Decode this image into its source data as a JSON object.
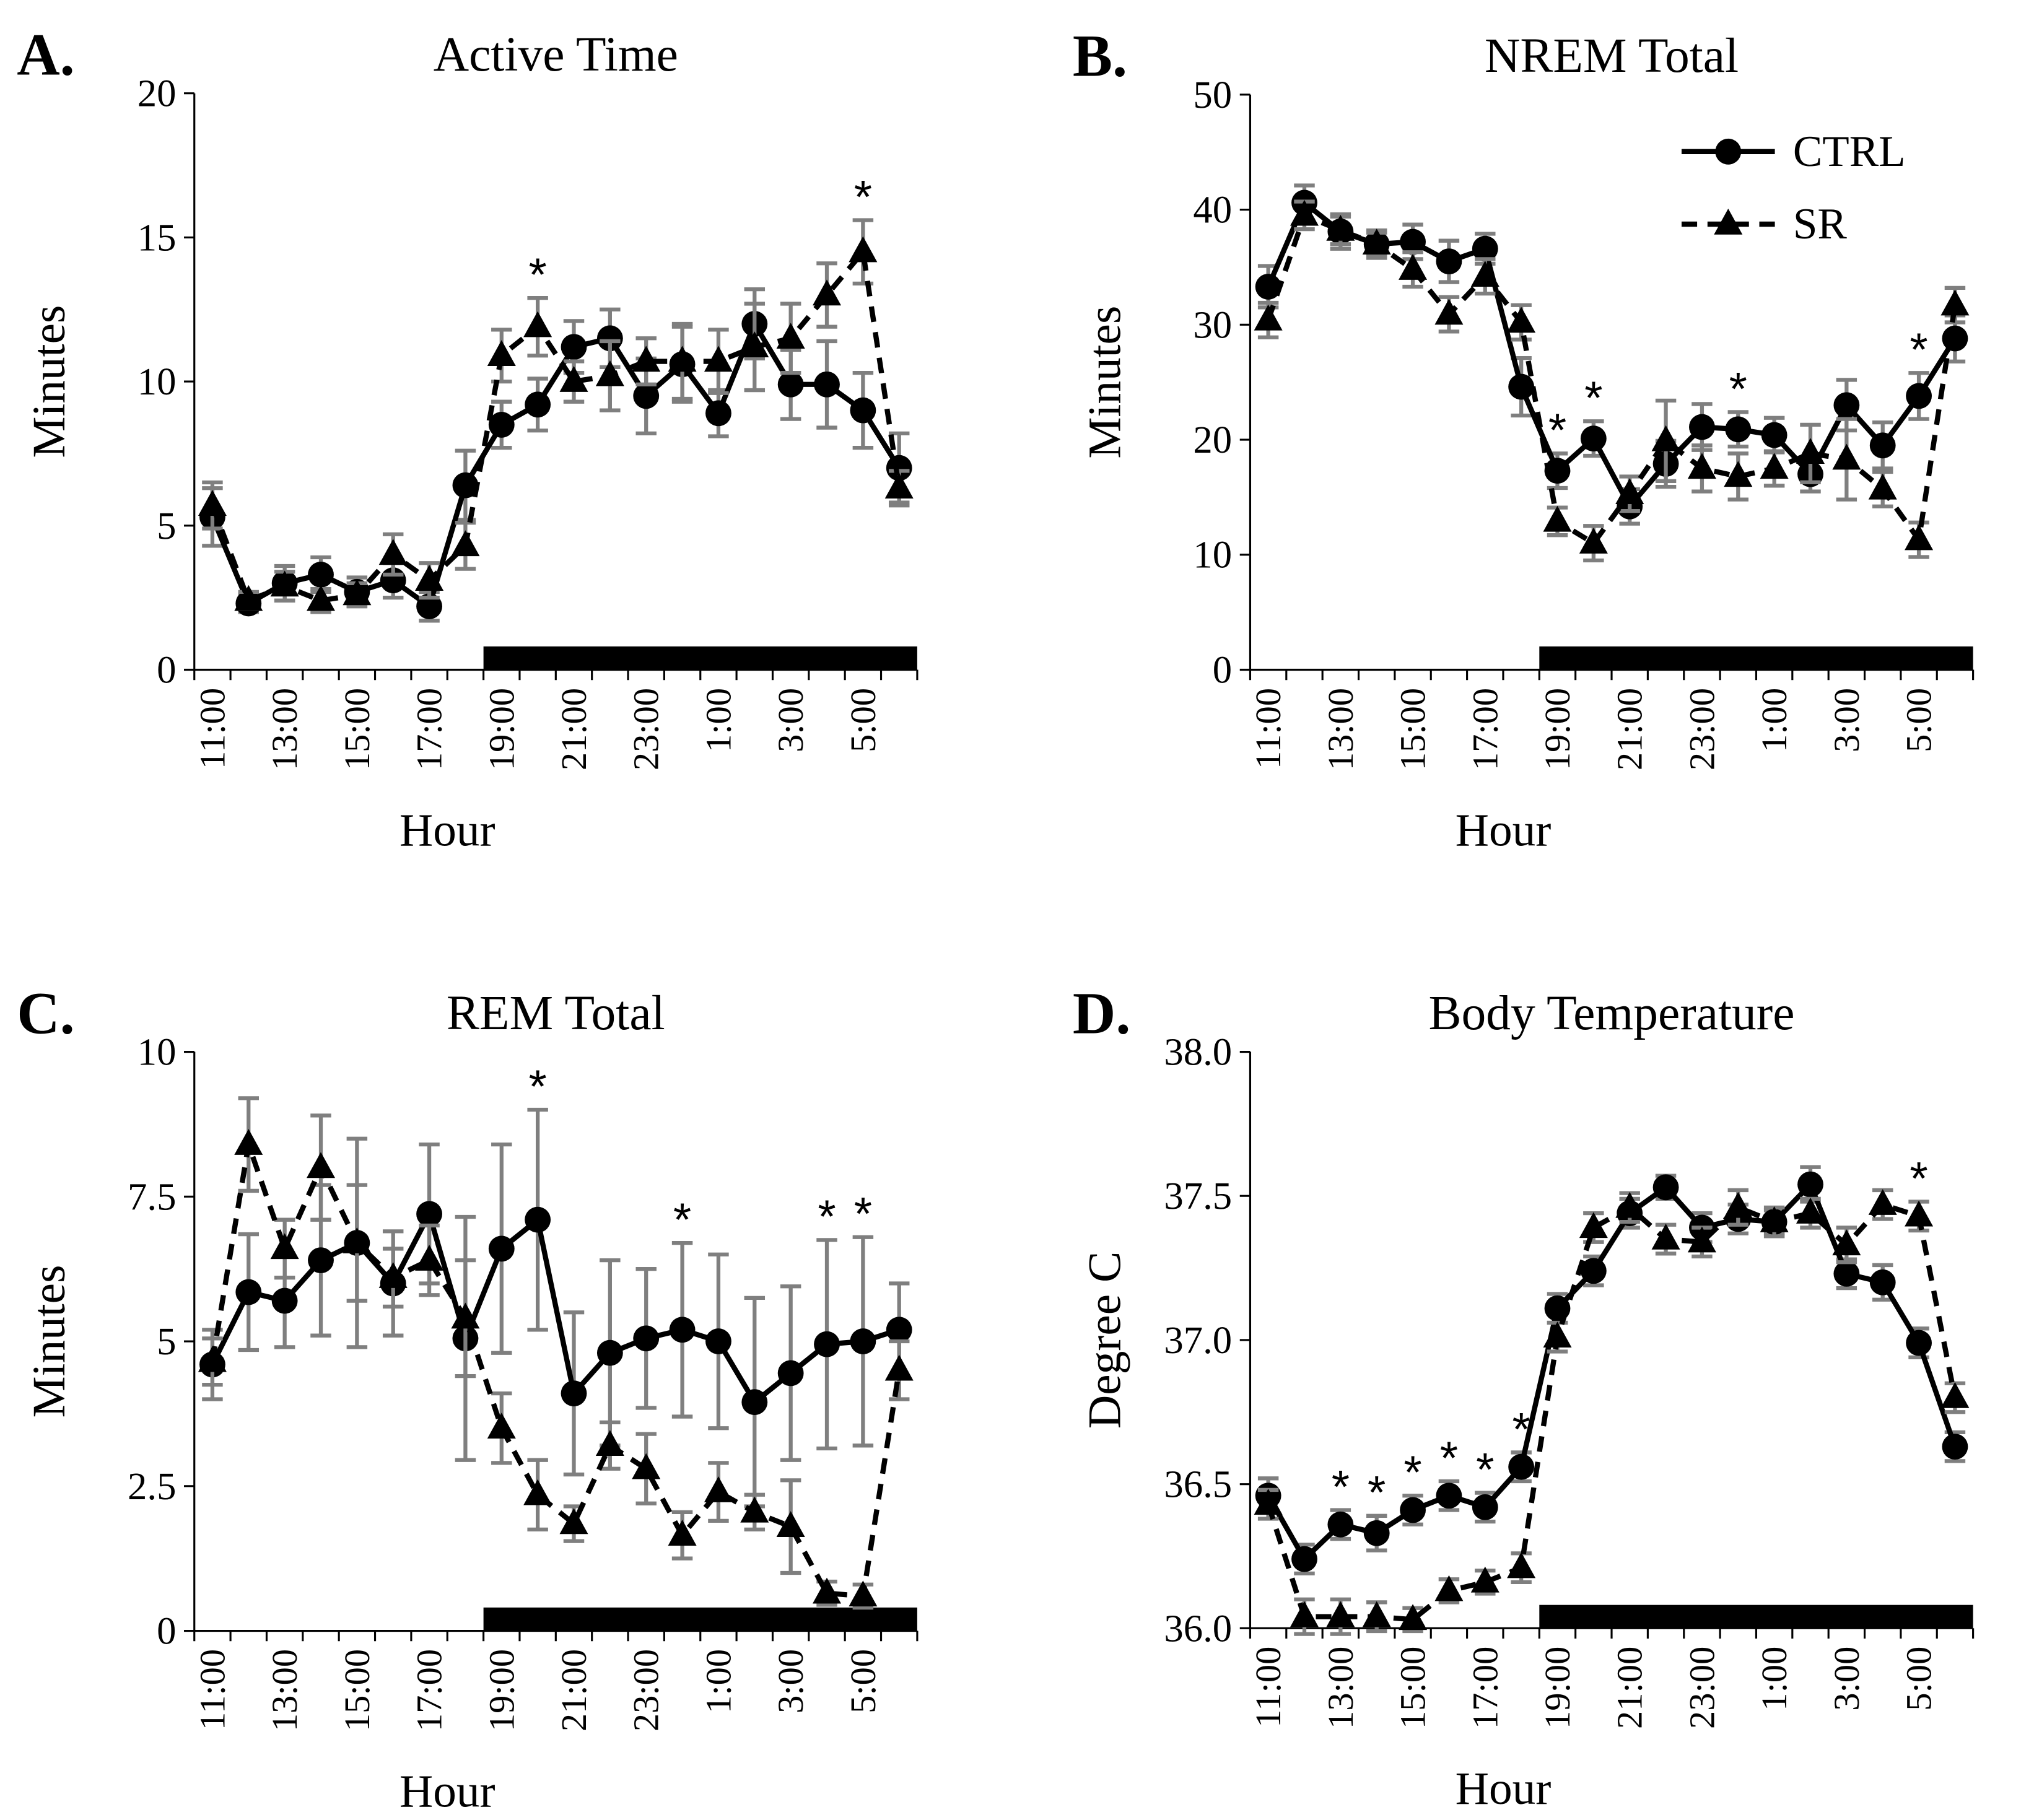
{
  "chart_data": [
    {
      "type": "line",
      "panel": "A.",
      "title": "Active Time",
      "xlabel": "Hour",
      "ylabel": "Minutes",
      "categories": [
        "11:00",
        null,
        "13:00",
        null,
        "15:00",
        null,
        "17:00",
        null,
        "19:00",
        null,
        "21:00",
        null,
        "23:00",
        null,
        "1:00",
        null,
        "3:00",
        null,
        "5:00",
        null
      ],
      "ylim": [
        0,
        20
      ],
      "yticks": [
        0,
        5,
        10,
        15,
        20
      ],
      "error_color": "#7f7f7f",
      "series": [
        {
          "name": "CTRL",
          "color": "#000000",
          "style": "solid",
          "marker": "circle",
          "values": [
            5.3,
            2.3,
            3.0,
            3.3,
            2.7,
            3.1,
            2.2,
            6.4,
            8.5,
            9.2,
            11.2,
            11.5,
            9.5,
            10.6,
            8.9,
            12.0,
            9.9,
            9.9,
            9.0,
            7.0
          ],
          "errors": [
            1.0,
            0.3,
            0.6,
            0.6,
            0.5,
            0.6,
            0.5,
            1.2,
            0.8,
            0.9,
            0.9,
            1.0,
            1.3,
            1.3,
            0.8,
            1.2,
            1.2,
            1.5,
            1.3,
            1.2
          ]
        },
        {
          "name": "SR",
          "color": "#000000",
          "style": "dashed",
          "marker": "triangle",
          "values": [
            5.7,
            2.4,
            2.9,
            2.4,
            2.6,
            4.0,
            3.1,
            4.3,
            10.9,
            11.9,
            10.0,
            10.2,
            10.7,
            10.7,
            10.7,
            11.2,
            11.5,
            13.0,
            14.5,
            6.3
          ],
          "errors": [
            0.8,
            0.3,
            0.5,
            0.4,
            0.4,
            0.7,
            0.6,
            0.8,
            0.9,
            1.0,
            0.7,
            1.2,
            0.8,
            1.3,
            1.1,
            1.5,
            1.2,
            1.1,
            1.1,
            0.6
          ]
        }
      ],
      "annotations": [
        {
          "text": "*",
          "at": 9
        },
        {
          "text": "*",
          "at": 18
        }
      ]
    },
    {
      "type": "line",
      "panel": "B.",
      "title": "NREM Total",
      "xlabel": "Hour",
      "ylabel": "Minutes",
      "legend": "upper right",
      "categories": [
        "11:00",
        null,
        "13:00",
        null,
        "15:00",
        null,
        "17:00",
        null,
        "19:00",
        null,
        "21:00",
        null,
        "23:00",
        null,
        "1:00",
        null,
        "3:00",
        null,
        "5:00",
        null
      ],
      "ylim": [
        0,
        50
      ],
      "yticks": [
        0,
        10,
        20,
        30,
        40,
        50
      ],
      "error_color": "#7f7f7f",
      "series": [
        {
          "name": "CTRL",
          "color": "#000000",
          "style": "solid",
          "marker": "circle",
          "values": [
            33.3,
            40.6,
            38.1,
            37.0,
            37.2,
            35.5,
            36.6,
            24.6,
            17.3,
            20.1,
            14.2,
            17.9,
            21.1,
            20.9,
            20.4,
            17.0,
            23.0,
            19.5,
            23.8,
            28.8
          ],
          "errors": [
            1.8,
            1.5,
            1.5,
            1.2,
            1.5,
            1.8,
            1.3,
            2.5,
            1.5,
            1.5,
            1.5,
            2.0,
            2.0,
            1.5,
            1.5,
            1.5,
            2.2,
            2.0,
            2.0,
            2.0
          ]
        },
        {
          "name": "SR",
          "color": "#000000",
          "style": "dashed",
          "marker": "triangle",
          "values": [
            30.4,
            39.5,
            38.2,
            37.0,
            34.8,
            30.9,
            34.2,
            30.2,
            12.9,
            11.0,
            15.3,
            19.9,
            17.5,
            16.8,
            17.5,
            18.8,
            18.3,
            15.7,
            11.3,
            31.7
          ],
          "errors": [
            1.5,
            1.2,
            1.2,
            1.0,
            1.5,
            1.5,
            1.5,
            1.5,
            1.2,
            1.5,
            1.5,
            3.5,
            2.0,
            2.0,
            1.5,
            2.5,
            3.5,
            1.5,
            1.5,
            1.5
          ]
        }
      ],
      "annotations": [
        {
          "text": "*",
          "at": 8
        },
        {
          "text": "*",
          "at": 9
        },
        {
          "text": "*",
          "at": 13
        },
        {
          "text": "*",
          "at": 18
        }
      ]
    },
    {
      "type": "line",
      "panel": "C.",
      "title": "REM Total",
      "xlabel": "Hour",
      "ylabel": "Minutes",
      "categories": [
        "11:00",
        null,
        "13:00",
        null,
        "15:00",
        null,
        "17:00",
        null,
        "19:00",
        null,
        "21:00",
        null,
        "23:00",
        null,
        "1:00",
        null,
        "3:00",
        null,
        "5:00",
        null
      ],
      "ylim": [
        0,
        10
      ],
      "yticks": [
        0,
        2.5,
        5,
        7.5,
        10
      ],
      "error_color": "#7f7f7f",
      "series": [
        {
          "name": "CTRL",
          "color": "#000000",
          "style": "solid",
          "marker": "circle",
          "values": [
            4.6,
            5.85,
            5.7,
            6.4,
            6.7,
            6.0,
            7.2,
            5.05,
            6.6,
            7.1,
            4.1,
            4.8,
            5.05,
            5.2,
            5.0,
            3.95,
            4.45,
            4.95,
            5.0,
            5.2
          ],
          "errors": [
            0.6,
            1.0,
            0.8,
            1.3,
            1.8,
            0.9,
            1.2,
            2.1,
            1.8,
            1.9,
            1.4,
            1.6,
            1.2,
            1.5,
            1.5,
            1.8,
            1.5,
            1.8,
            1.8,
            0.8
          ]
        },
        {
          "name": "SR",
          "color": "#000000",
          "style": "dashed",
          "marker": "triangle",
          "values": [
            4.65,
            8.4,
            6.6,
            8.0,
            6.7,
            6.1,
            6.4,
            5.4,
            3.5,
            2.35,
            1.85,
            3.2,
            2.8,
            1.65,
            2.4,
            2.05,
            1.8,
            0.65,
            0.6,
            4.5
          ],
          "errors": [
            0.4,
            0.8,
            0.5,
            0.9,
            1.0,
            0.5,
            0.6,
            1.0,
            0.6,
            0.6,
            0.3,
            0.4,
            0.6,
            0.4,
            0.5,
            0.3,
            0.8,
            0.2,
            0.2,
            0.5
          ]
        }
      ],
      "annotations": [
        {
          "text": "*",
          "at": 9
        },
        {
          "text": "*",
          "at": 13
        },
        {
          "text": "*",
          "at": 17
        },
        {
          "text": "*",
          "at": 18
        }
      ]
    },
    {
      "type": "line",
      "panel": "D.",
      "title": "Body Temperature",
      "xlabel": "Hour",
      "ylabel": "Degree C",
      "categories": [
        "11:00",
        null,
        "13:00",
        null,
        "15:00",
        null,
        "17:00",
        null,
        "19:00",
        null,
        "21:00",
        null,
        "23:00",
        null,
        "1:00",
        null,
        "3:00",
        null,
        "5:00",
        null
      ],
      "ylim": [
        36,
        38
      ],
      "yticks": [
        {
          "value": 36,
          "label": "36.0"
        },
        36.5,
        {
          "value": 37,
          "label": "37.0"
        },
        37.5,
        {
          "value": 38,
          "label": "38.0"
        }
      ],
      "error_color": "#7f7f7f",
      "series": [
        {
          "name": "CTRL",
          "color": "#000000",
          "style": "solid",
          "marker": "circle",
          "values": [
            36.46,
            36.24,
            36.36,
            36.33,
            36.41,
            36.46,
            36.42,
            36.56,
            37.11,
            37.24,
            37.44,
            37.53,
            37.39,
            37.42,
            37.41,
            37.54,
            37.23,
            37.2,
            36.99,
            36.63
          ],
          "errors": [
            0.06,
            0.05,
            0.05,
            0.06,
            0.05,
            0.05,
            0.05,
            0.05,
            0.05,
            0.05,
            0.05,
            0.04,
            0.05,
            0.05,
            0.04,
            0.06,
            0.05,
            0.06,
            0.05,
            0.05
          ]
        },
        {
          "name": "SR",
          "color": "#000000",
          "style": "dashed",
          "marker": "triangle",
          "values": [
            36.43,
            36.04,
            36.04,
            36.04,
            36.03,
            36.13,
            36.16,
            36.21,
            37.01,
            37.39,
            37.46,
            37.35,
            37.34,
            37.46,
            37.41,
            37.44,
            37.33,
            37.47,
            37.43,
            36.8
          ],
          "errors": [
            0.05,
            0.06,
            0.06,
            0.05,
            0.04,
            0.04,
            0.04,
            0.05,
            0.05,
            0.05,
            0.05,
            0.05,
            0.05,
            0.06,
            0.05,
            0.05,
            0.06,
            0.05,
            0.05,
            0.05
          ]
        }
      ],
      "annotations": [
        {
          "text": "*",
          "at": 2
        },
        {
          "text": "*",
          "at": 3
        },
        {
          "text": "*",
          "at": 4
        },
        {
          "text": "*",
          "at": 5
        },
        {
          "text": "*",
          "at": 6
        },
        {
          "text": "*",
          "at": 7
        },
        {
          "text": "*",
          "at": 18
        }
      ]
    }
  ]
}
